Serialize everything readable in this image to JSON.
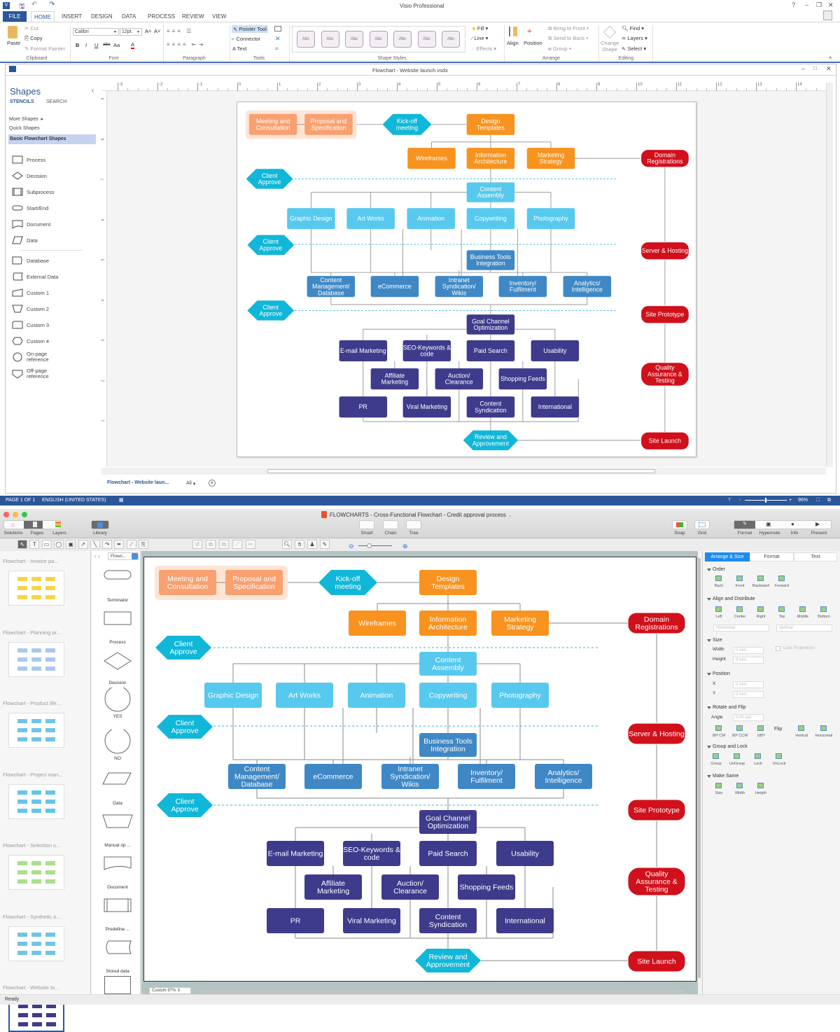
{
  "visio": {
    "app_title": "Visio Professional",
    "window_controls": [
      "?",
      "–",
      "❐",
      "✕"
    ],
    "tabs": [
      "FILE",
      "HOME",
      "INSERT",
      "DESIGN",
      "DATA",
      "PROCESS",
      "REVIEW",
      "VIEW"
    ],
    "active_tab": "HOME",
    "clipboard": {
      "paste": "Paste",
      "cut": "Cut",
      "copy": "Copy",
      "format_painter": "Format Painter",
      "label": "Clipboard"
    },
    "font": {
      "name": "Calibri",
      "size": "12pt.",
      "label": "Font",
      "bold": "B",
      "italic": "I",
      "underline": "U",
      "strike": "abc",
      "case": "Aa"
    },
    "paragraph": {
      "label": "Paragraph"
    },
    "tools": {
      "pointer": "Pointer Tool",
      "connector": "Connector",
      "text": "Text",
      "label": "Tools"
    },
    "shape_styles": {
      "sample": "Abc",
      "count": 7,
      "label": "Shape Styles",
      "fill": "Fill",
      "line": "Line",
      "effects": "Effects"
    },
    "arrange": {
      "align": "Align",
      "position": "Position",
      "bring_front": "Bring to Front",
      "send_back": "Send to Back",
      "group": "Group",
      "label": "Arrange"
    },
    "editing": {
      "change_shape": "Change Shape",
      "find": "Find",
      "layers": "Layers",
      "select": "Select",
      "label": "Editing"
    },
    "document_title": "Flowchart - Website launch.vsdx",
    "shapes_pane": {
      "title": "Shapes",
      "stencils": "STENCILS",
      "search": "SEARCH",
      "more_shapes": "More Shapes",
      "quick_shapes": "Quick Shapes",
      "selected_stencil": "Basic Flowchart Shapes",
      "items": [
        "Process",
        "Decision",
        "Subprocess",
        "Start/End",
        "Document",
        "Data",
        "Database",
        "External Data",
        "Custom 1",
        "Custom 2",
        "Custom 3",
        "Custom 4",
        "On-page reference",
        "Off-page reference"
      ]
    },
    "ruler_h": [
      "-3",
      "-2",
      "-1",
      "0",
      "1",
      "2",
      "3",
      "4",
      "5",
      "6",
      "7",
      "8",
      "9",
      "10",
      "11",
      "12",
      "13",
      "14"
    ],
    "ruler_v": [
      "9",
      "8",
      "7",
      "6",
      "5",
      "4",
      "3",
      "2",
      "1"
    ],
    "page_tab": "Flowchart - Website laun...",
    "all_tab": "All ▴",
    "status": {
      "page": "PAGE 1 OF 1",
      "language": "ENGLISH (UNITED STATES)",
      "zoom": "96%",
      "zoom_level": 0.48
    }
  },
  "conceptdraw": {
    "window_title": "FLOWCHARTS - Cross-Functional Flowchart - Credit approval process",
    "toolbar_left": [
      "Solutions",
      "Pages",
      "Layers"
    ],
    "library": "Library",
    "toolbar_mid": [
      "Smart",
      "Chain",
      "Tree"
    ],
    "snap": "Snap",
    "grid": "Grid",
    "toolbar_right": [
      "Format",
      "Hypernote",
      "Info",
      "Present"
    ],
    "pages": [
      "Flowchart - Invoice pa...",
      "Flowchart - Planning pr...",
      "Flowchart - Product life...",
      "Flowchart - Project man...",
      "Flowchart - Selection s...",
      "Flowchart - Synthetic o...",
      "Flowchart - Website la..."
    ],
    "library_select": "Flowc...",
    "library_items": [
      "Terminator",
      "Process",
      "Decision",
      "YES",
      "NO",
      "Data",
      "Manual op ...",
      "Document",
      "Predefine ...",
      "Stored data"
    ],
    "zoom": "Custom 97%",
    "status": "Ready",
    "panel": {
      "tabs": [
        "Arrange & Size",
        "Format",
        "Text"
      ],
      "active_tab": "Arrange & Size",
      "order": {
        "title": "Order",
        "items": [
          "Back",
          "Front",
          "Backward",
          "Forward"
        ]
      },
      "align": {
        "title": "Align and Distribute",
        "items": [
          "Left",
          "Center",
          "Right",
          "Top",
          "Middle",
          "Bottom"
        ],
        "horizontal": "Horizontal",
        "vertical": "Vertical"
      },
      "size": {
        "title": "Size",
        "width_label": "Width",
        "height_label": "Height",
        "width": "0 mm",
        "height": "0 mm",
        "lock": "Lock Proportions"
      },
      "position": {
        "title": "Position",
        "x_label": "X",
        "y_label": "Y",
        "x": "0 mm",
        "y": "0 mm"
      },
      "rotate": {
        "title": "Rotate and Flip",
        "angle_label": "Angle",
        "angle": "0.00 rad",
        "items": [
          "90º CW",
          "90º CCW",
          "180º"
        ],
        "flip": "Flip",
        "flip_items": [
          "Vertical",
          "Horizontal"
        ]
      },
      "group": {
        "title": "Group and Lock",
        "items": [
          "Group",
          "UnGroup",
          "Lock",
          "UnLock"
        ]
      },
      "same": {
        "title": "Make Same",
        "items": [
          "Size",
          "Width",
          "Height"
        ]
      }
    }
  },
  "flowchart": {
    "colors": {
      "peach": "#f9a06f",
      "orange": "#f7931e",
      "hex": "#11b7d8",
      "lightcyan": "#57c9ee",
      "blue": "#3f88c5",
      "purple": "#3e3b8c",
      "red": "#d0101b",
      "group_bg": "#fde5d6"
    },
    "nodes": [
      {
        "label": "Meeting and\nConsultation",
        "kind": "peach"
      },
      {
        "label": "Proposal and\nSpecification",
        "kind": "peach"
      },
      {
        "label": "Kick-off\nmeeting",
        "kind": "hex"
      },
      {
        "label": "Design\nTemplates",
        "kind": "orange"
      },
      {
        "label": "Wireframes",
        "kind": "orange"
      },
      {
        "label": "Information\nArchitecture",
        "kind": "orange"
      },
      {
        "label": "Marketing\nStrategy",
        "kind": "orange"
      },
      {
        "label": "Domain\nRegistrations",
        "kind": "red"
      },
      {
        "label": "Client\nApprove",
        "kind": "hex"
      },
      {
        "label": "Content\nAssembly",
        "kind": "lightcyan"
      },
      {
        "label": "Graphic Design",
        "kind": "lightcyan"
      },
      {
        "label": "Art Works",
        "kind": "lightcyan"
      },
      {
        "label": "Animation",
        "kind": "lightcyan"
      },
      {
        "label": "Copywriting",
        "kind": "lightcyan"
      },
      {
        "label": "Photography",
        "kind": "lightcyan"
      },
      {
        "label": "Server & Hosting",
        "kind": "red"
      },
      {
        "label": "Client\nApprove",
        "kind": "hex"
      },
      {
        "label": "Business Tools\nIntegration",
        "kind": "blue"
      },
      {
        "label": "Content\nManagement/\nDatabase",
        "kind": "blue"
      },
      {
        "label": "eCommerce",
        "kind": "blue"
      },
      {
        "label": "Intranet\nSyndication/\nWikis",
        "kind": "blue"
      },
      {
        "label": "Inventory/\nFulfilment",
        "kind": "blue"
      },
      {
        "label": "Analytics/\nIntelligence",
        "kind": "blue"
      },
      {
        "label": "Client\nApprove",
        "kind": "hex"
      },
      {
        "label": "Site Prototype",
        "kind": "red"
      },
      {
        "label": "Goal Channel\nOptimization",
        "kind": "purple"
      },
      {
        "label": "E-mail Marketing",
        "kind": "purple"
      },
      {
        "label": "SEO-Keywords &\ncode",
        "kind": "purple"
      },
      {
        "label": "Paid Search",
        "kind": "purple"
      },
      {
        "label": "Usability",
        "kind": "purple"
      },
      {
        "label": "Affiliate\nMarketing",
        "kind": "purple"
      },
      {
        "label": "Auction/\nClearance",
        "kind": "purple"
      },
      {
        "label": "Shopping Feeds",
        "kind": "purple"
      },
      {
        "label": "Quality\nAssurance &\nTesting",
        "kind": "red"
      },
      {
        "label": "PR",
        "kind": "purple"
      },
      {
        "label": "Viral Marketing",
        "kind": "purple"
      },
      {
        "label": "Content\nSyndication",
        "kind": "purple"
      },
      {
        "label": "International",
        "kind": "purple"
      },
      {
        "label": "Review and\nApprovement",
        "kind": "hex"
      },
      {
        "label": "Site Launch",
        "kind": "red"
      }
    ]
  }
}
